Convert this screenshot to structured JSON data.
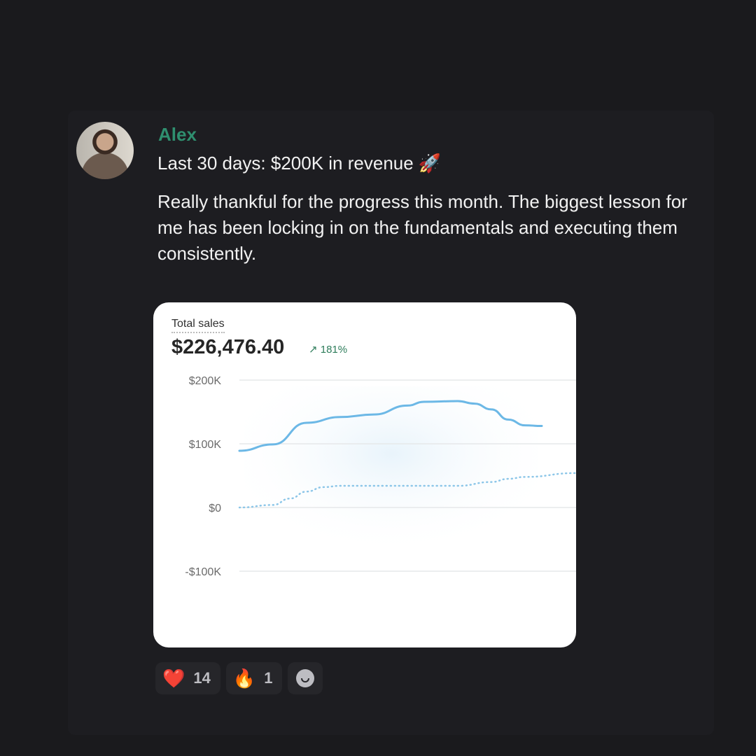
{
  "post": {
    "author": "Alex",
    "title": "Last 30 days: $200K in revenue 🚀",
    "body": "Really thankful for the progress this month. The biggest lesson for me has been locking in on the fundamentals and executing them consistently.",
    "author_color": "#2f8f6f"
  },
  "chart_data": {
    "type": "line",
    "label": "Total sales",
    "total": "$226,476.40",
    "change": "181%",
    "change_icon": "arrow-up-right-icon",
    "ylim": [
      -100000,
      200000
    ],
    "yticks": [
      200000,
      100000,
      0,
      -100000
    ],
    "ytick_labels": [
      "$200K",
      "$100K",
      "$0",
      "-$100K"
    ],
    "grid": true,
    "series": [
      {
        "style": "solid",
        "color": "#6cb8e6",
        "x": [
          0,
          2,
          4,
          6,
          8,
          10,
          11,
          13,
          14,
          15,
          16,
          17,
          18
        ],
        "values": [
          89000,
          99000,
          133000,
          142000,
          146000,
          160000,
          166000,
          167000,
          163000,
          154000,
          138000,
          129000,
          128000
        ]
      },
      {
        "style": "dotted",
        "color": "#8cc6e8",
        "x": [
          0,
          2,
          3,
          4,
          5,
          6,
          13,
          15,
          16,
          17,
          20
        ],
        "values": [
          0,
          4000,
          14000,
          25000,
          32000,
          34000,
          34000,
          40000,
          45000,
          48000,
          54000
        ]
      }
    ],
    "xlim": [
      0,
      20
    ]
  },
  "reactions": [
    {
      "emoji": "❤️",
      "icon": "heart-icon",
      "count": "14"
    },
    {
      "emoji": "🔥",
      "icon": "fire-icon",
      "count": "1"
    }
  ],
  "add_reaction_icon": "smiley-icon"
}
